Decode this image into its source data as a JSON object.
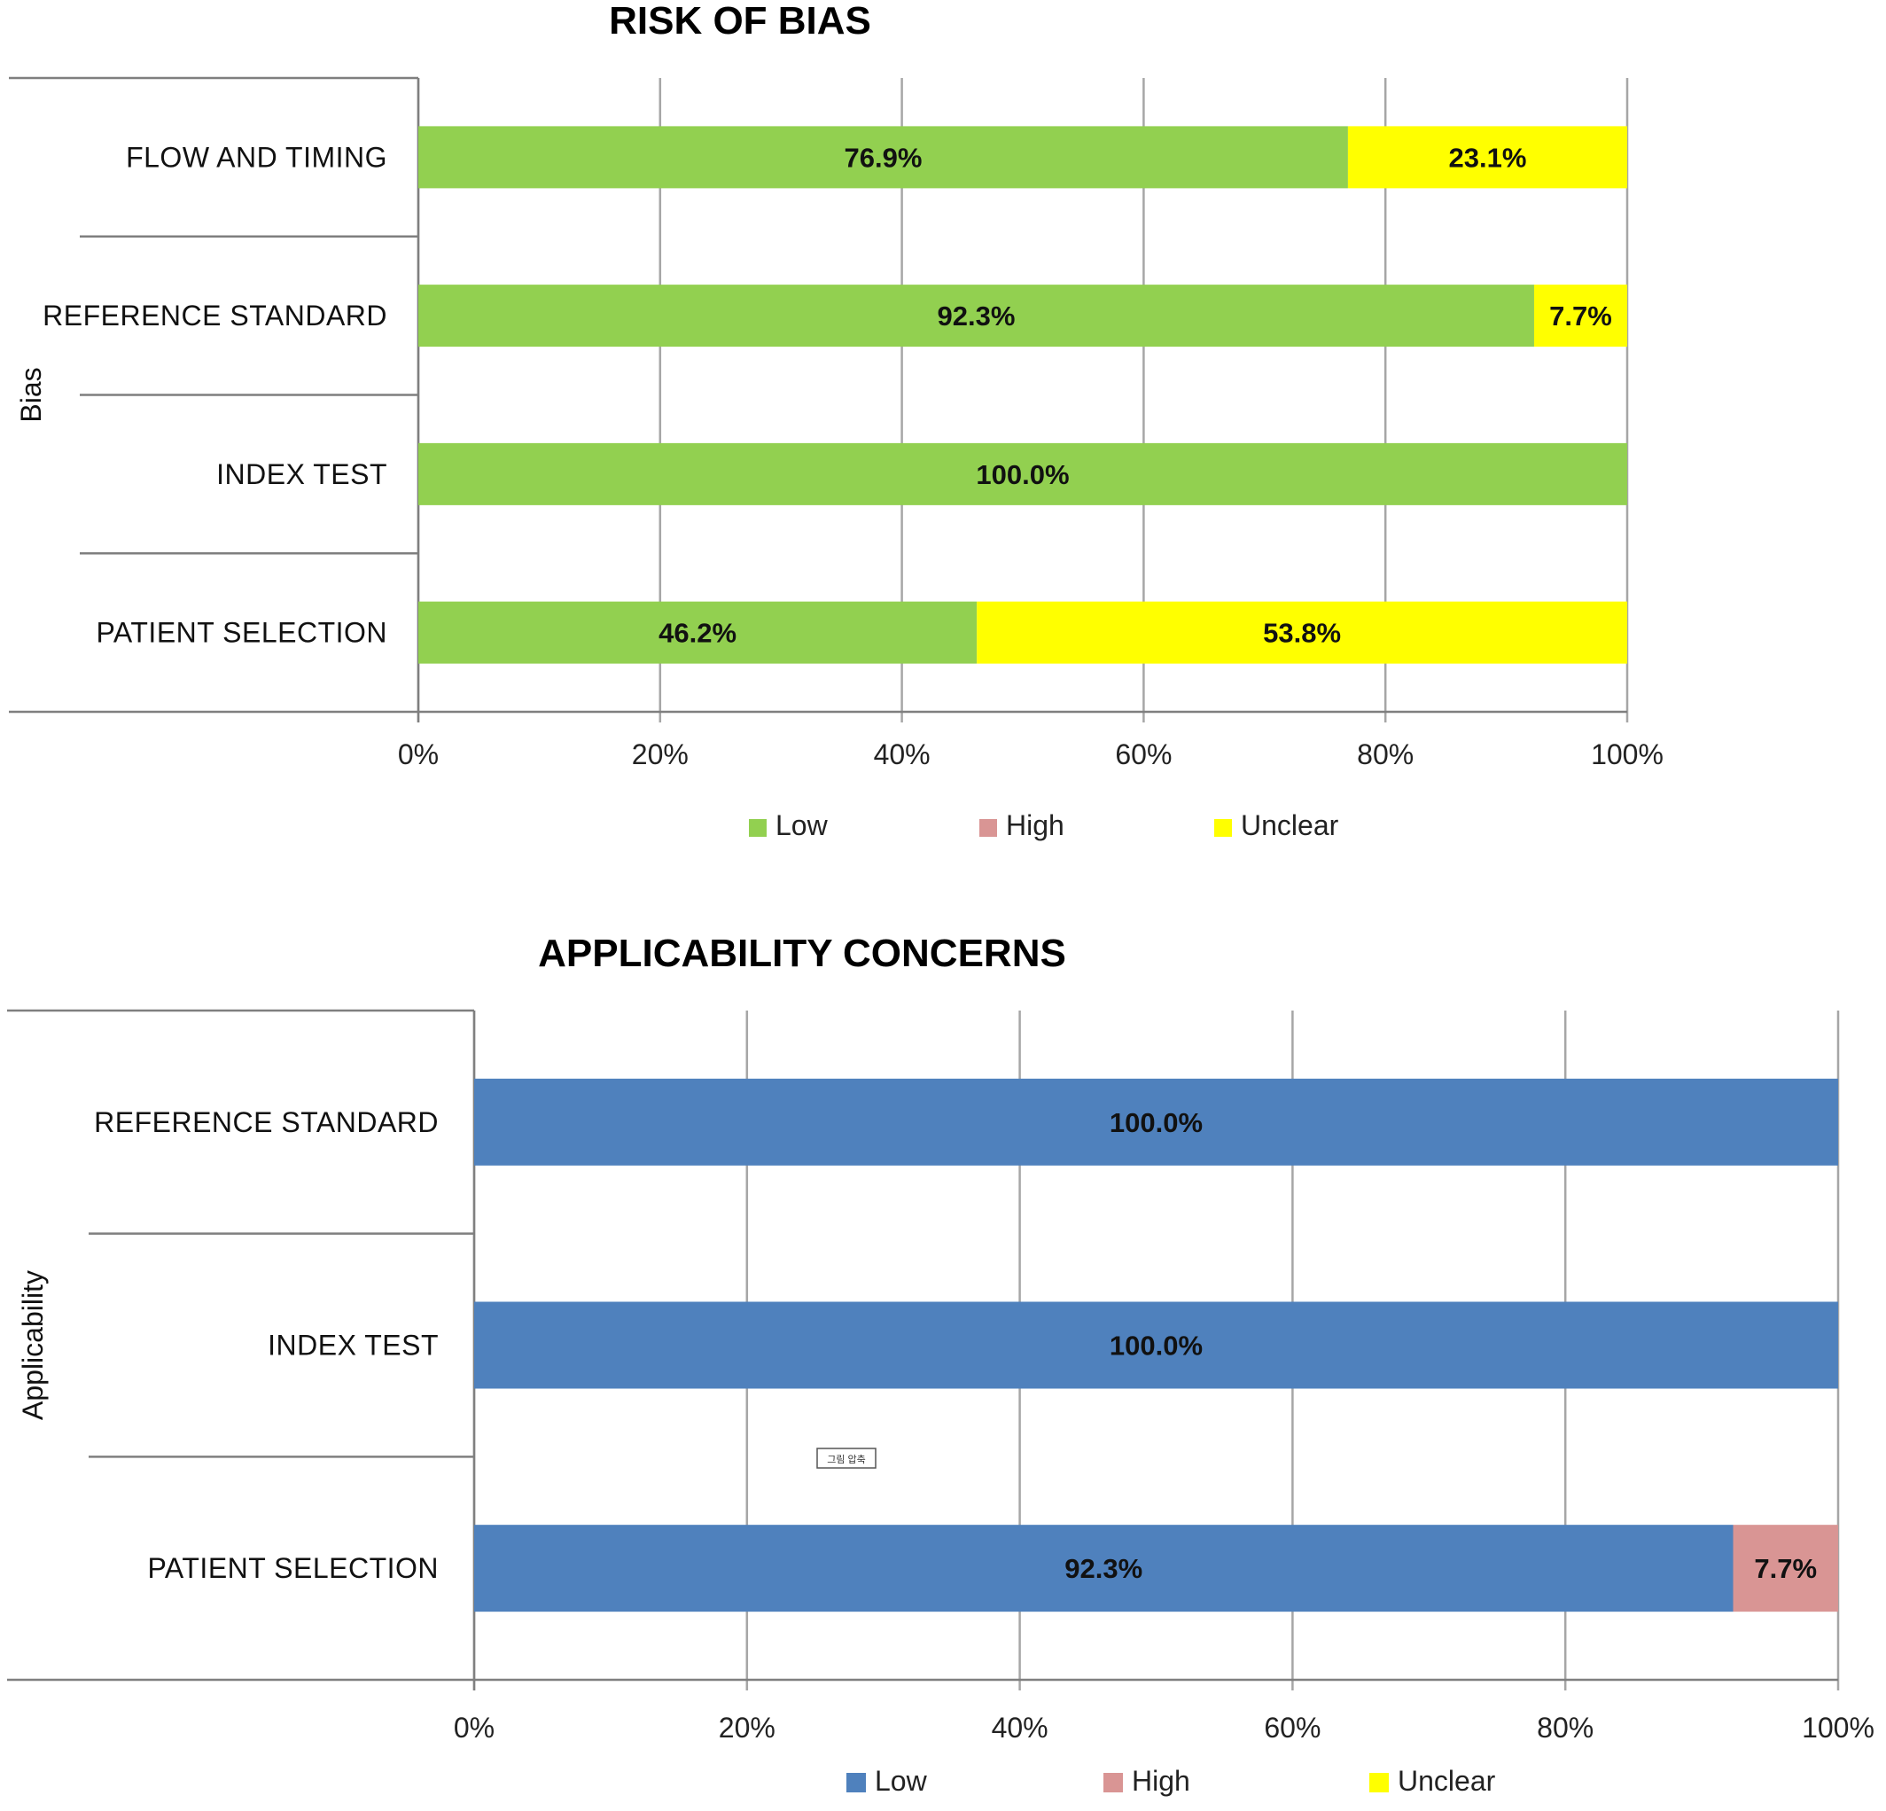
{
  "chart_data": [
    {
      "type": "bar",
      "orientation": "horizontal",
      "stacked": true,
      "title": "RISK OF BIAS",
      "ylabel": "Bias",
      "xlim": [
        0,
        100
      ],
      "x_ticks": [
        "0%",
        "20%",
        "40%",
        "60%",
        "80%",
        "100%"
      ],
      "grid": true,
      "legend_position": "bottom",
      "categories": [
        "FLOW AND TIMING",
        "REFERENCE STANDARD",
        "INDEX TEST",
        "PATIENT SELECTION"
      ],
      "series": [
        {
          "name": "Low",
          "color": "#92d050",
          "values": [
            76.9,
            92.3,
            100.0,
            46.2
          ],
          "labels": [
            "76.9%",
            "92.3%",
            "100.0%",
            "46.2%"
          ]
        },
        {
          "name": "High",
          "color": "#d99594",
          "values": [
            0,
            0,
            0,
            0
          ],
          "labels": [
            "",
            "",
            "",
            ""
          ]
        },
        {
          "name": "Unclear",
          "color": "#ffff00",
          "values": [
            23.1,
            7.7,
            0,
            53.8
          ],
          "labels": [
            "23.1%",
            "7.7%",
            "",
            "53.8%"
          ]
        }
      ]
    },
    {
      "type": "bar",
      "orientation": "horizontal",
      "stacked": true,
      "title": "APPLICABILITY CONCERNS",
      "ylabel": "Applicability",
      "xlim": [
        0,
        100
      ],
      "x_ticks": [
        "0%",
        "20%",
        "40%",
        "60%",
        "80%",
        "100%"
      ],
      "grid": true,
      "legend_position": "bottom",
      "categories": [
        "REFERENCE STANDARD",
        "INDEX TEST",
        "PATIENT SELECTION"
      ],
      "series": [
        {
          "name": "Low",
          "color": "#4f81bd",
          "values": [
            100.0,
            100.0,
            92.3
          ],
          "labels": [
            "100.0%",
            "100.0%",
            "92.3%"
          ]
        },
        {
          "name": "High",
          "color": "#d99594",
          "values": [
            0,
            0,
            7.7
          ],
          "labels": [
            "",
            "",
            "7.7%"
          ]
        },
        {
          "name": "Unclear",
          "color": "#ffff00",
          "values": [
            0,
            0,
            0
          ],
          "labels": [
            "",
            "",
            ""
          ]
        }
      ]
    }
  ],
  "stamp_text": "그림 압축"
}
